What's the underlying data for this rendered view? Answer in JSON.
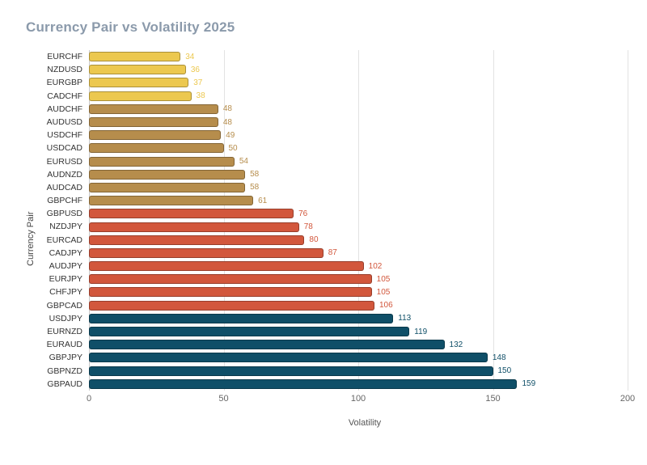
{
  "chart_data": {
    "type": "bar",
    "orientation": "horizontal",
    "title": "Currency Pair vs Volatility 2025",
    "xlabel": "Volatility",
    "ylabel": "Currency Pair",
    "xlim": [
      0,
      200
    ],
    "xticks": [
      0,
      50,
      100,
      150,
      200
    ],
    "categories": [
      "EURCHF",
      "NZDUSD",
      "EURGBP",
      "CADCHF",
      "AUDCHF",
      "AUDUSD",
      "USDCHF",
      "USDCAD",
      "EURUSD",
      "AUDNZD",
      "AUDCAD",
      "GBPCHF",
      "GBPUSD",
      "NZDJPY",
      "EURCAD",
      "CADJPY",
      "AUDJPY",
      "EURJPY",
      "CHFJPY",
      "GBPCAD",
      "USDJPY",
      "EURNZD",
      "EURAUD",
      "GBPJPY",
      "GBPNZD",
      "GBPAUD"
    ],
    "values": [
      34,
      36,
      37,
      38,
      48,
      48,
      49,
      50,
      54,
      58,
      58,
      61,
      76,
      78,
      80,
      87,
      102,
      105,
      105,
      106,
      113,
      119,
      132,
      148,
      150,
      159
    ],
    "bar_colors": [
      "#ecc84f",
      "#ecc84f",
      "#ecc84f",
      "#ecc84f",
      "#b68d4c",
      "#b68d4c",
      "#b68d4c",
      "#b68d4c",
      "#b68d4c",
      "#b68d4c",
      "#b68d4c",
      "#b68d4c",
      "#d2573c",
      "#d2573c",
      "#d2573c",
      "#d2573c",
      "#d2573c",
      "#d2573c",
      "#d2573c",
      "#d2573c",
      "#0f4f68",
      "#0f4f68",
      "#0f4f68",
      "#0f4f68",
      "#0f4f68",
      "#0f4f68"
    ],
    "palette": {
      "gold": "#ecc84f",
      "tan": "#b68d4c",
      "red": "#d2573c",
      "navy": "#0f4f68"
    },
    "title_color": "#8b9aab",
    "gridline_color": "#e2e2e2",
    "legend": "none",
    "grid": "vertical"
  }
}
